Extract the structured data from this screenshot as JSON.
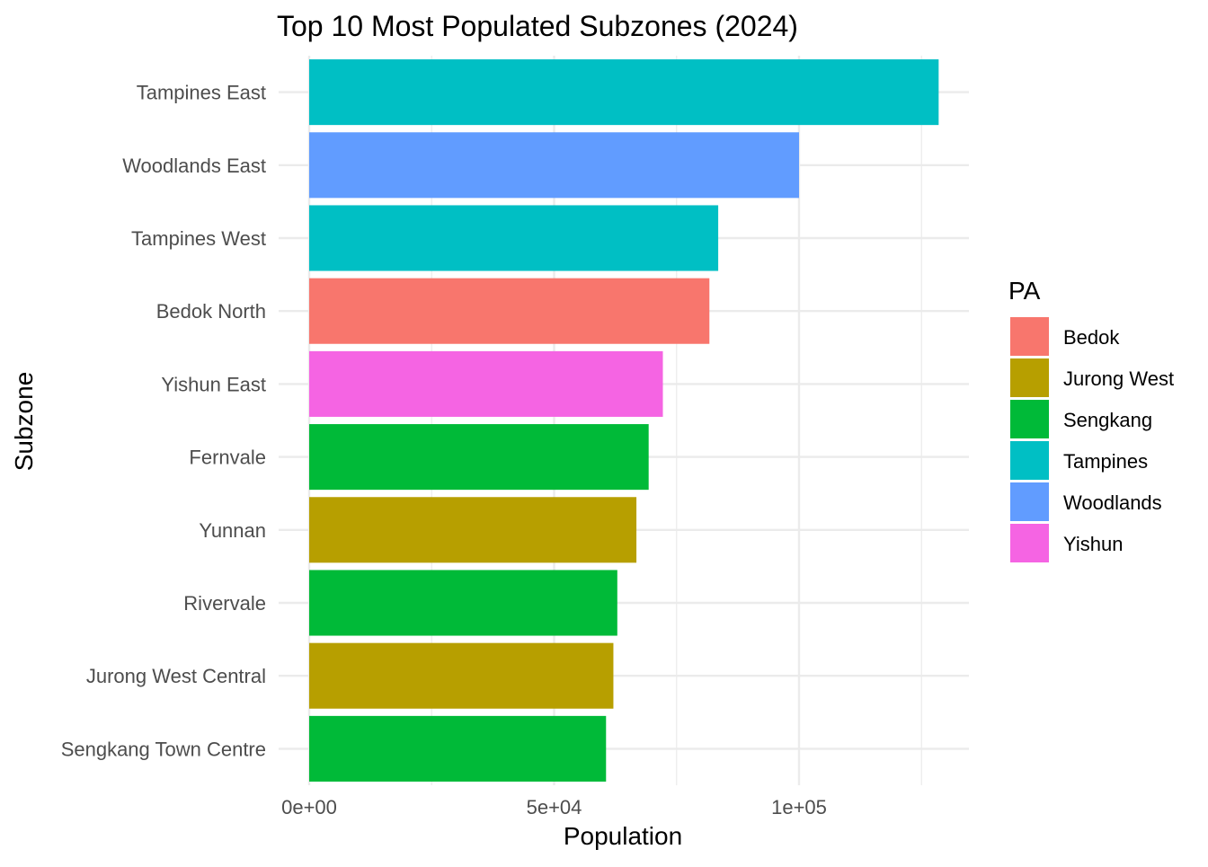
{
  "chart_data": {
    "type": "bar",
    "orientation": "horizontal",
    "title": "Top 10 Most Populated Subzones (2024)",
    "xlabel": "Population",
    "ylabel": "Subzone",
    "xlim": [
      0,
      134000
    ],
    "x_ticks": [
      {
        "value": 0,
        "label": "0e+00"
      },
      {
        "value": 50000,
        "label": "5e+04"
      },
      {
        "value": 100000,
        "label": "1e+05"
      }
    ],
    "grid": true,
    "legend": {
      "title": "PA",
      "position": "right",
      "entries": [
        {
          "name": "Bedok",
          "color": "#F8766D"
        },
        {
          "name": "Jurong West",
          "color": "#B79F00"
        },
        {
          "name": "Sengkang",
          "color": "#00BA38"
        },
        {
          "name": "Tampines",
          "color": "#00BFC4"
        },
        {
          "name": "Woodlands",
          "color": "#619CFF"
        },
        {
          "name": "Yishun",
          "color": "#F564E3"
        }
      ]
    },
    "bars": [
      {
        "category": "Tampines East",
        "value": 128500,
        "group": "Tampines"
      },
      {
        "category": "Woodlands East",
        "value": 100000,
        "group": "Woodlands"
      },
      {
        "category": "Tampines West",
        "value": 83500,
        "group": "Tampines"
      },
      {
        "category": "Bedok North",
        "value": 81700,
        "group": "Bedok"
      },
      {
        "category": "Yishun East",
        "value": 72200,
        "group": "Yishun"
      },
      {
        "category": "Fernvale",
        "value": 69300,
        "group": "Sengkang"
      },
      {
        "category": "Yunnan",
        "value": 66800,
        "group": "Jurong West"
      },
      {
        "category": "Rivervale",
        "value": 62900,
        "group": "Sengkang"
      },
      {
        "category": "Jurong West Central",
        "value": 62100,
        "group": "Jurong West"
      },
      {
        "category": "Sengkang Town Centre",
        "value": 60600,
        "group": "Sengkang"
      }
    ]
  }
}
